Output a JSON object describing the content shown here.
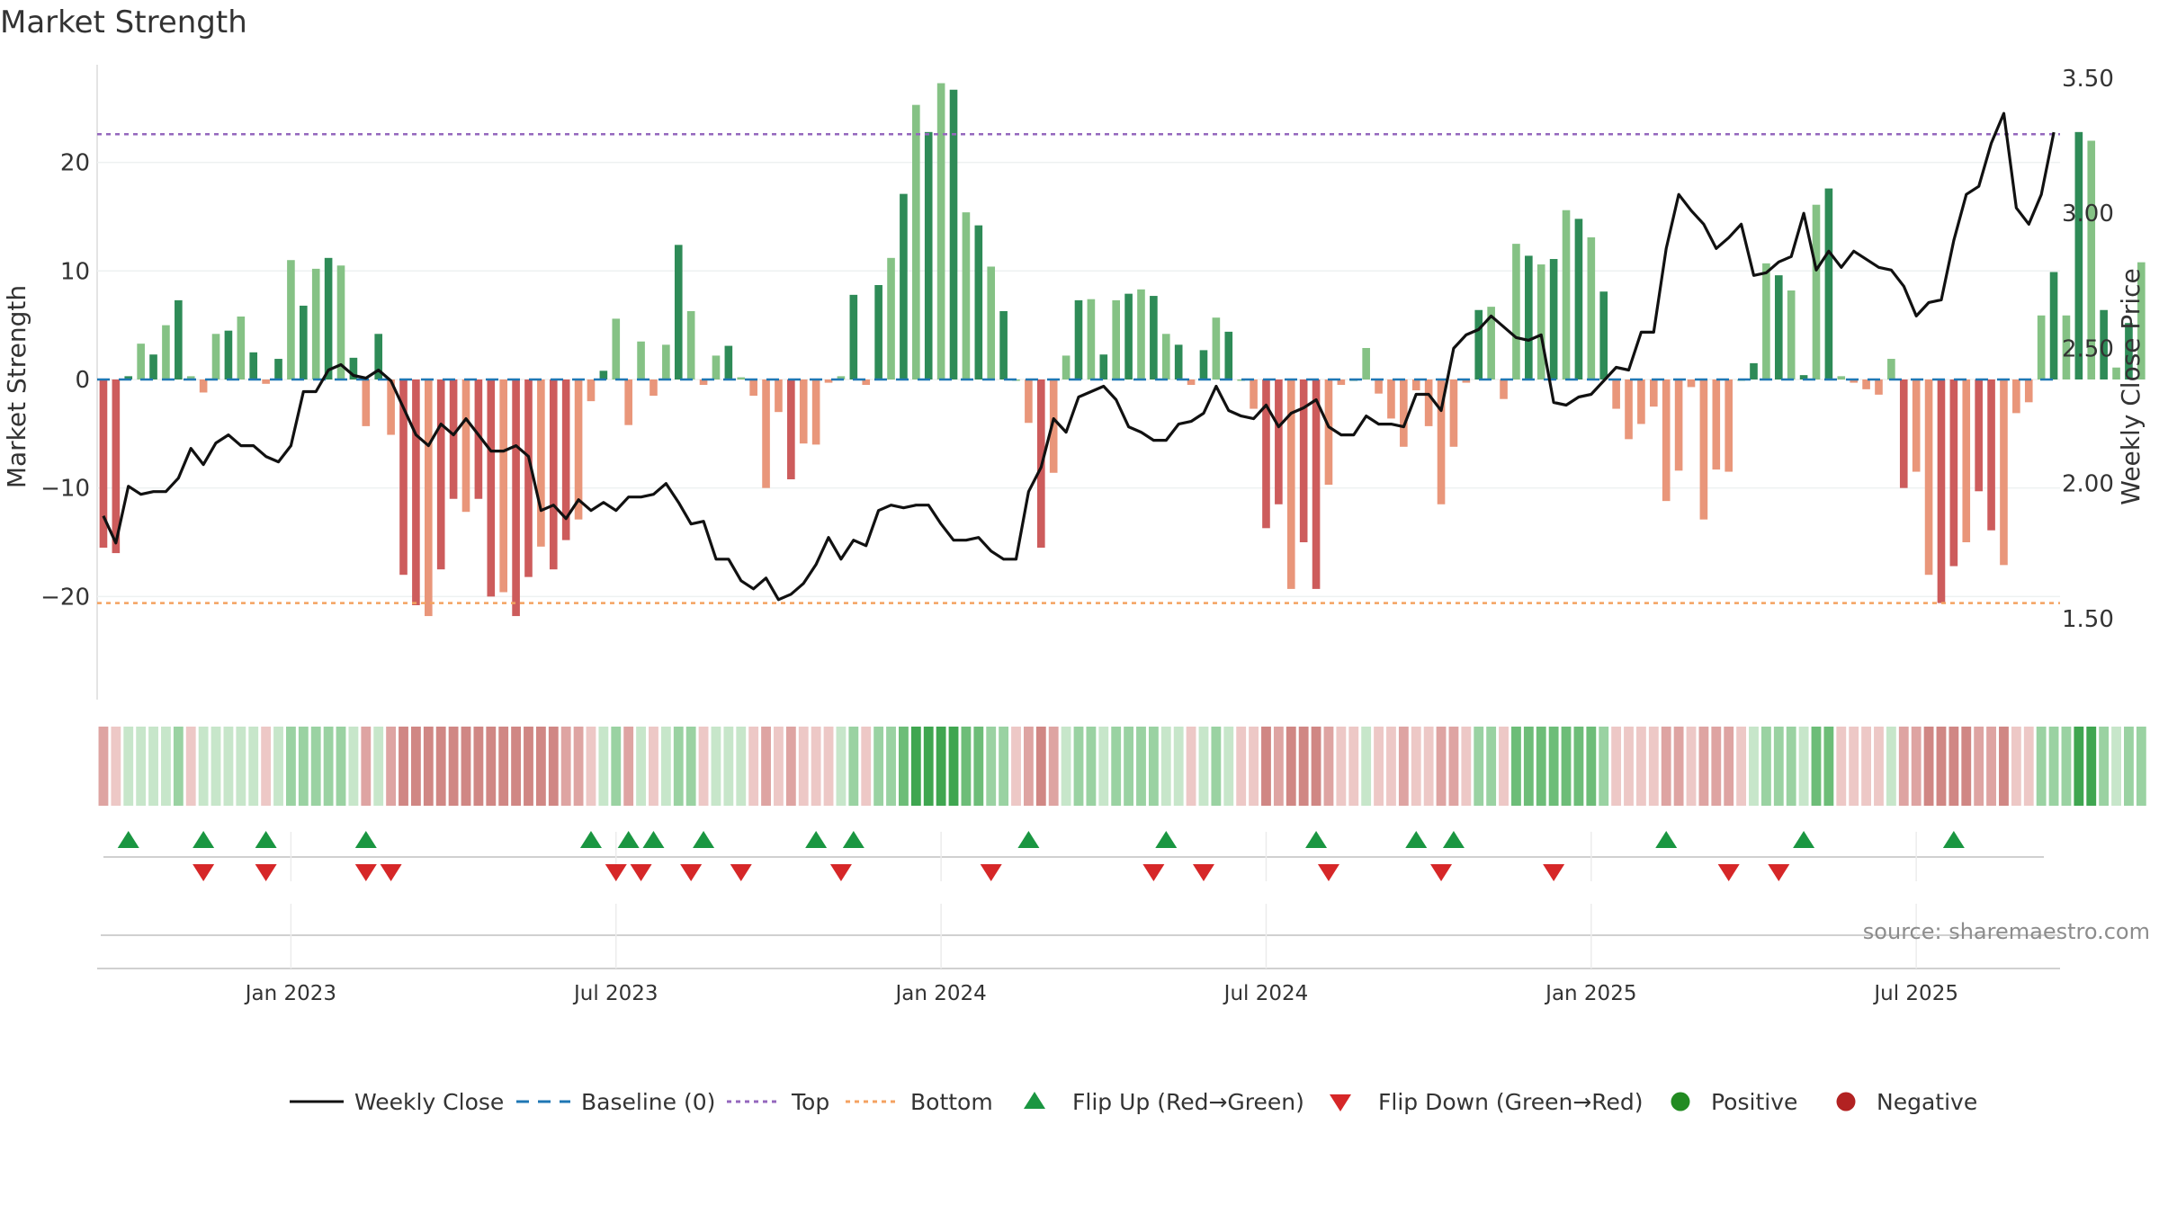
{
  "chart_data": {
    "type": "bar",
    "title": "Market Strength",
    "ylabel": "Market Strength",
    "y2label": "Weekly Close Price",
    "ylim": [
      -29.5,
      29
    ],
    "y2lim": [
      1.2,
      3.55
    ],
    "yticks": [
      "20",
      "10",
      "0",
      "−10",
      "−20"
    ],
    "yticks_values": [
      20,
      10,
      0,
      -10,
      -20
    ],
    "y2ticks": [
      "3.50",
      "3.00",
      "2.50",
      "2.00",
      "1.50"
    ],
    "y2ticks_values": [
      3.5,
      3.0,
      2.5,
      2.0,
      1.5
    ],
    "xlim": [
      0,
      157
    ],
    "xticks": [
      {
        "label": "Jan 2023",
        "week": 15
      },
      {
        "label": "Jul 2023",
        "week": 41
      },
      {
        "label": "Jan 2024",
        "week": 67
      },
      {
        "label": "Jul 2024",
        "week": 93
      },
      {
        "label": "Jan 2025",
        "week": 119
      },
      {
        "label": "Jul 2025",
        "week": 145
      }
    ],
    "top_line": 22.6,
    "bottom_line": -20.6,
    "strength": [
      -15.5,
      -16,
      0.3,
      3.3,
      2.3,
      5,
      7.3,
      0.3,
      -1.2,
      4.2,
      4.5,
      5.8,
      2.5,
      -0.4,
      1.9,
      11,
      6.8,
      10.2,
      11.2,
      10.5,
      2,
      -4.3,
      4.2,
      -5.1,
      -18,
      -20.8,
      -21.8,
      -17.5,
      -11,
      -12.2,
      -11,
      -20,
      -19.6,
      -21.8,
      -18.2,
      -15.4,
      -17.5,
      -14.8,
      -12.9,
      -2,
      0.8,
      5.6,
      -4.2,
      3.5,
      -1.5,
      3.2,
      12.4,
      6.3,
      -0.5,
      2.2,
      3.1,
      0.2,
      -1.5,
      -10,
      -3,
      -9.2,
      -5.9,
      -6,
      -0.3,
      0.3,
      7.8,
      -0.5,
      8.7,
      11.2,
      17.1,
      25.3,
      22.8,
      27.3,
      26.7,
      15.4,
      14.2,
      10.4,
      6.3,
      0,
      -4,
      -15.5,
      -8.6,
      2.2,
      7.3,
      7.4,
      2.3,
      7.3,
      7.9,
      8.3,
      7.7,
      4.2,
      3.2,
      -0.5,
      2.7,
      5.7,
      4.4,
      0,
      -2.7,
      -13.7,
      -11.5,
      -19.3,
      -15,
      -19.3,
      -9.7,
      -0.5,
      0,
      2.9,
      -1.3,
      -3.6,
      -6.2,
      -1,
      -4.3,
      -11.5,
      -6.2,
      -0.3,
      6.4,
      6.7,
      -1.8,
      12.5,
      11.4,
      10.6,
      11.1,
      15.6,
      14.8,
      13.1,
      8.1,
      -2.7,
      -5.5,
      -4.1,
      -2.5,
      -11.2,
      -8.4,
      -0.7,
      -12.9,
      -8.3,
      -8.5,
      0,
      1.5,
      10.7,
      9.6,
      8.2,
      0.4,
      16.1,
      17.6,
      0.3,
      -0.3,
      -0.9,
      -1.4,
      1.9,
      -10,
      -8.5,
      -18,
      -20.6,
      -17.2,
      -15,
      -10.3,
      -13.9,
      -17.1,
      -3.1,
      -2.1,
      5.9,
      9.9,
      5.9,
      22.8,
      22,
      6.4,
      1.1,
      5.2,
      10.8
    ],
    "close": [
      1.88,
      1.78,
      1.99,
      1.96,
      1.97,
      1.97,
      2.02,
      2.13,
      2.07,
      2.15,
      2.18,
      2.14,
      2.14,
      2.1,
      2.08,
      2.14,
      2.34,
      2.34,
      2.42,
      2.44,
      2.4,
      2.39,
      2.42,
      2.38,
      2.28,
      2.18,
      2.14,
      2.22,
      2.18,
      2.24,
      2.18,
      2.12,
      2.12,
      2.14,
      2.1,
      1.9,
      1.92,
      1.87,
      1.94,
      1.9,
      1.93,
      1.9,
      1.95,
      1.95,
      1.96,
      2.0,
      1.93,
      1.85,
      1.86,
      1.72,
      1.72,
      1.64,
      1.61,
      1.65,
      1.57,
      1.59,
      1.63,
      1.7,
      1.8,
      1.72,
      1.79,
      1.77,
      1.9,
      1.92,
      1.91,
      1.92,
      1.92,
      1.85,
      1.79,
      1.79,
      1.8,
      1.75,
      1.72,
      1.72,
      1.97,
      2.06,
      2.24,
      2.19,
      2.32,
      2.34,
      2.36,
      2.31,
      2.21,
      2.19,
      2.16,
      2.16,
      2.22,
      2.23,
      2.26,
      2.36,
      2.27,
      2.25,
      2.24,
      2.29,
      2.21,
      2.26,
      2.28,
      2.31,
      2.21,
      2.18,
      2.18,
      2.25,
      2.22,
      2.22,
      2.21,
      2.33,
      2.33,
      2.27,
      2.5,
      2.55,
      2.57,
      2.62,
      2.58,
      2.54,
      2.53,
      2.55,
      2.3,
      2.29,
      2.32,
      2.33,
      2.38,
      2.43,
      2.42,
      2.56,
      2.56,
      2.87,
      3.07,
      3.01,
      2.96,
      2.87,
      2.91,
      2.96,
      2.77,
      2.78,
      2.82,
      2.84,
      3.0,
      2.79,
      2.86,
      2.8,
      2.86,
      2.83,
      2.8,
      2.79,
      2.73,
      2.62,
      2.67,
      2.68,
      2.9,
      3.07,
      3.1,
      3.26,
      3.37,
      3.02,
      2.96,
      3.07,
      3.3
    ],
    "strip_shades": [
      "r2",
      "r1",
      "g1",
      "g1",
      "g1",
      "g1",
      "g2",
      "r1",
      "g1",
      "g1",
      "g1",
      "g1",
      "g1",
      "r1",
      "g1",
      "g2",
      "g2",
      "g2",
      "g2",
      "g2",
      "g1",
      "r2",
      "g1",
      "r2",
      "r3",
      "r3",
      "r3",
      "r3",
      "r3",
      "r3",
      "r3",
      "r3",
      "r3",
      "r3",
      "r3",
      "r3",
      "r3",
      "r2",
      "r2",
      "r1",
      "g1",
      "g2",
      "r2",
      "g1",
      "r1",
      "g1",
      "g2",
      "g2",
      "r1",
      "g1",
      "g1",
      "g1",
      "r1",
      "r2",
      "r1",
      "r2",
      "r1",
      "r1",
      "r1",
      "g1",
      "g2",
      "r1",
      "g2",
      "g2",
      "g3",
      "g4",
      "g4",
      "g4",
      "g4",
      "g3",
      "g3",
      "g2",
      "g2",
      "r1",
      "r2",
      "r3",
      "r2",
      "g1",
      "g2",
      "g2",
      "g1",
      "g2",
      "g2",
      "g2",
      "g2",
      "g1",
      "g1",
      "r1",
      "g1",
      "g2",
      "g1",
      "r1",
      "r1",
      "r3",
      "r2",
      "r3",
      "r3",
      "r3",
      "r2",
      "r1",
      "r1",
      "g1",
      "r1",
      "r1",
      "r2",
      "r1",
      "r1",
      "r2",
      "r2",
      "r1",
      "g2",
      "g2",
      "r1",
      "g3",
      "g3",
      "g3",
      "g3",
      "g3",
      "g3",
      "g3",
      "g2",
      "r1",
      "r1",
      "r1",
      "r1",
      "r2",
      "r2",
      "r1",
      "r2",
      "r2",
      "r2",
      "r1",
      "g1",
      "g2",
      "g2",
      "g2",
      "g1",
      "g3",
      "g3",
      "r1",
      "r1",
      "r1",
      "r1",
      "g1",
      "r2",
      "r2",
      "r3",
      "r3",
      "r3",
      "r3",
      "r2",
      "r2",
      "r3",
      "r1",
      "r1",
      "g2",
      "g2",
      "g2",
      "g4",
      "g4",
      "g2",
      "g1",
      "g2",
      "g2"
    ],
    "flip_up_weeks": [
      2,
      8,
      13,
      21,
      39,
      42,
      44,
      48,
      57,
      60,
      74,
      85,
      97,
      105,
      108,
      125,
      136,
      148
    ],
    "flip_down_weeks": [
      8,
      13,
      21,
      23,
      41,
      43,
      47,
      51,
      59,
      71,
      84,
      88,
      98,
      107,
      116,
      130,
      134
    ],
    "legend": [
      "Weekly Close",
      "Baseline (0)",
      "Top",
      "Bottom",
      "Flip Up (Red→Green)",
      "Flip Down (Green→Red)",
      "Positive",
      "Negative"
    ],
    "legend_position": "bottom-center"
  },
  "source": "source: sharemaestro.com",
  "colors": {
    "pos_dark": "#2e8b57",
    "pos_light": "#85c285",
    "neg_dark": "#cd5c5c",
    "neg_light": "#e9967a",
    "line": "#111111",
    "top": "#9467bd",
    "bottom": "#f4a261",
    "baseline": "#1f77b4",
    "flip_up": "#1a9641",
    "flip_down": "#d62728",
    "positive": "#228b22",
    "negative": "#b22222",
    "strip_g1": "#c7e6ca",
    "strip_g2": "#9ad2a2",
    "strip_g3": "#6dbd78",
    "strip_g4": "#3fa650",
    "strip_r1": "#edc8c6",
    "strip_r2": "#dea4a2",
    "strip_r3": "#d08784"
  }
}
